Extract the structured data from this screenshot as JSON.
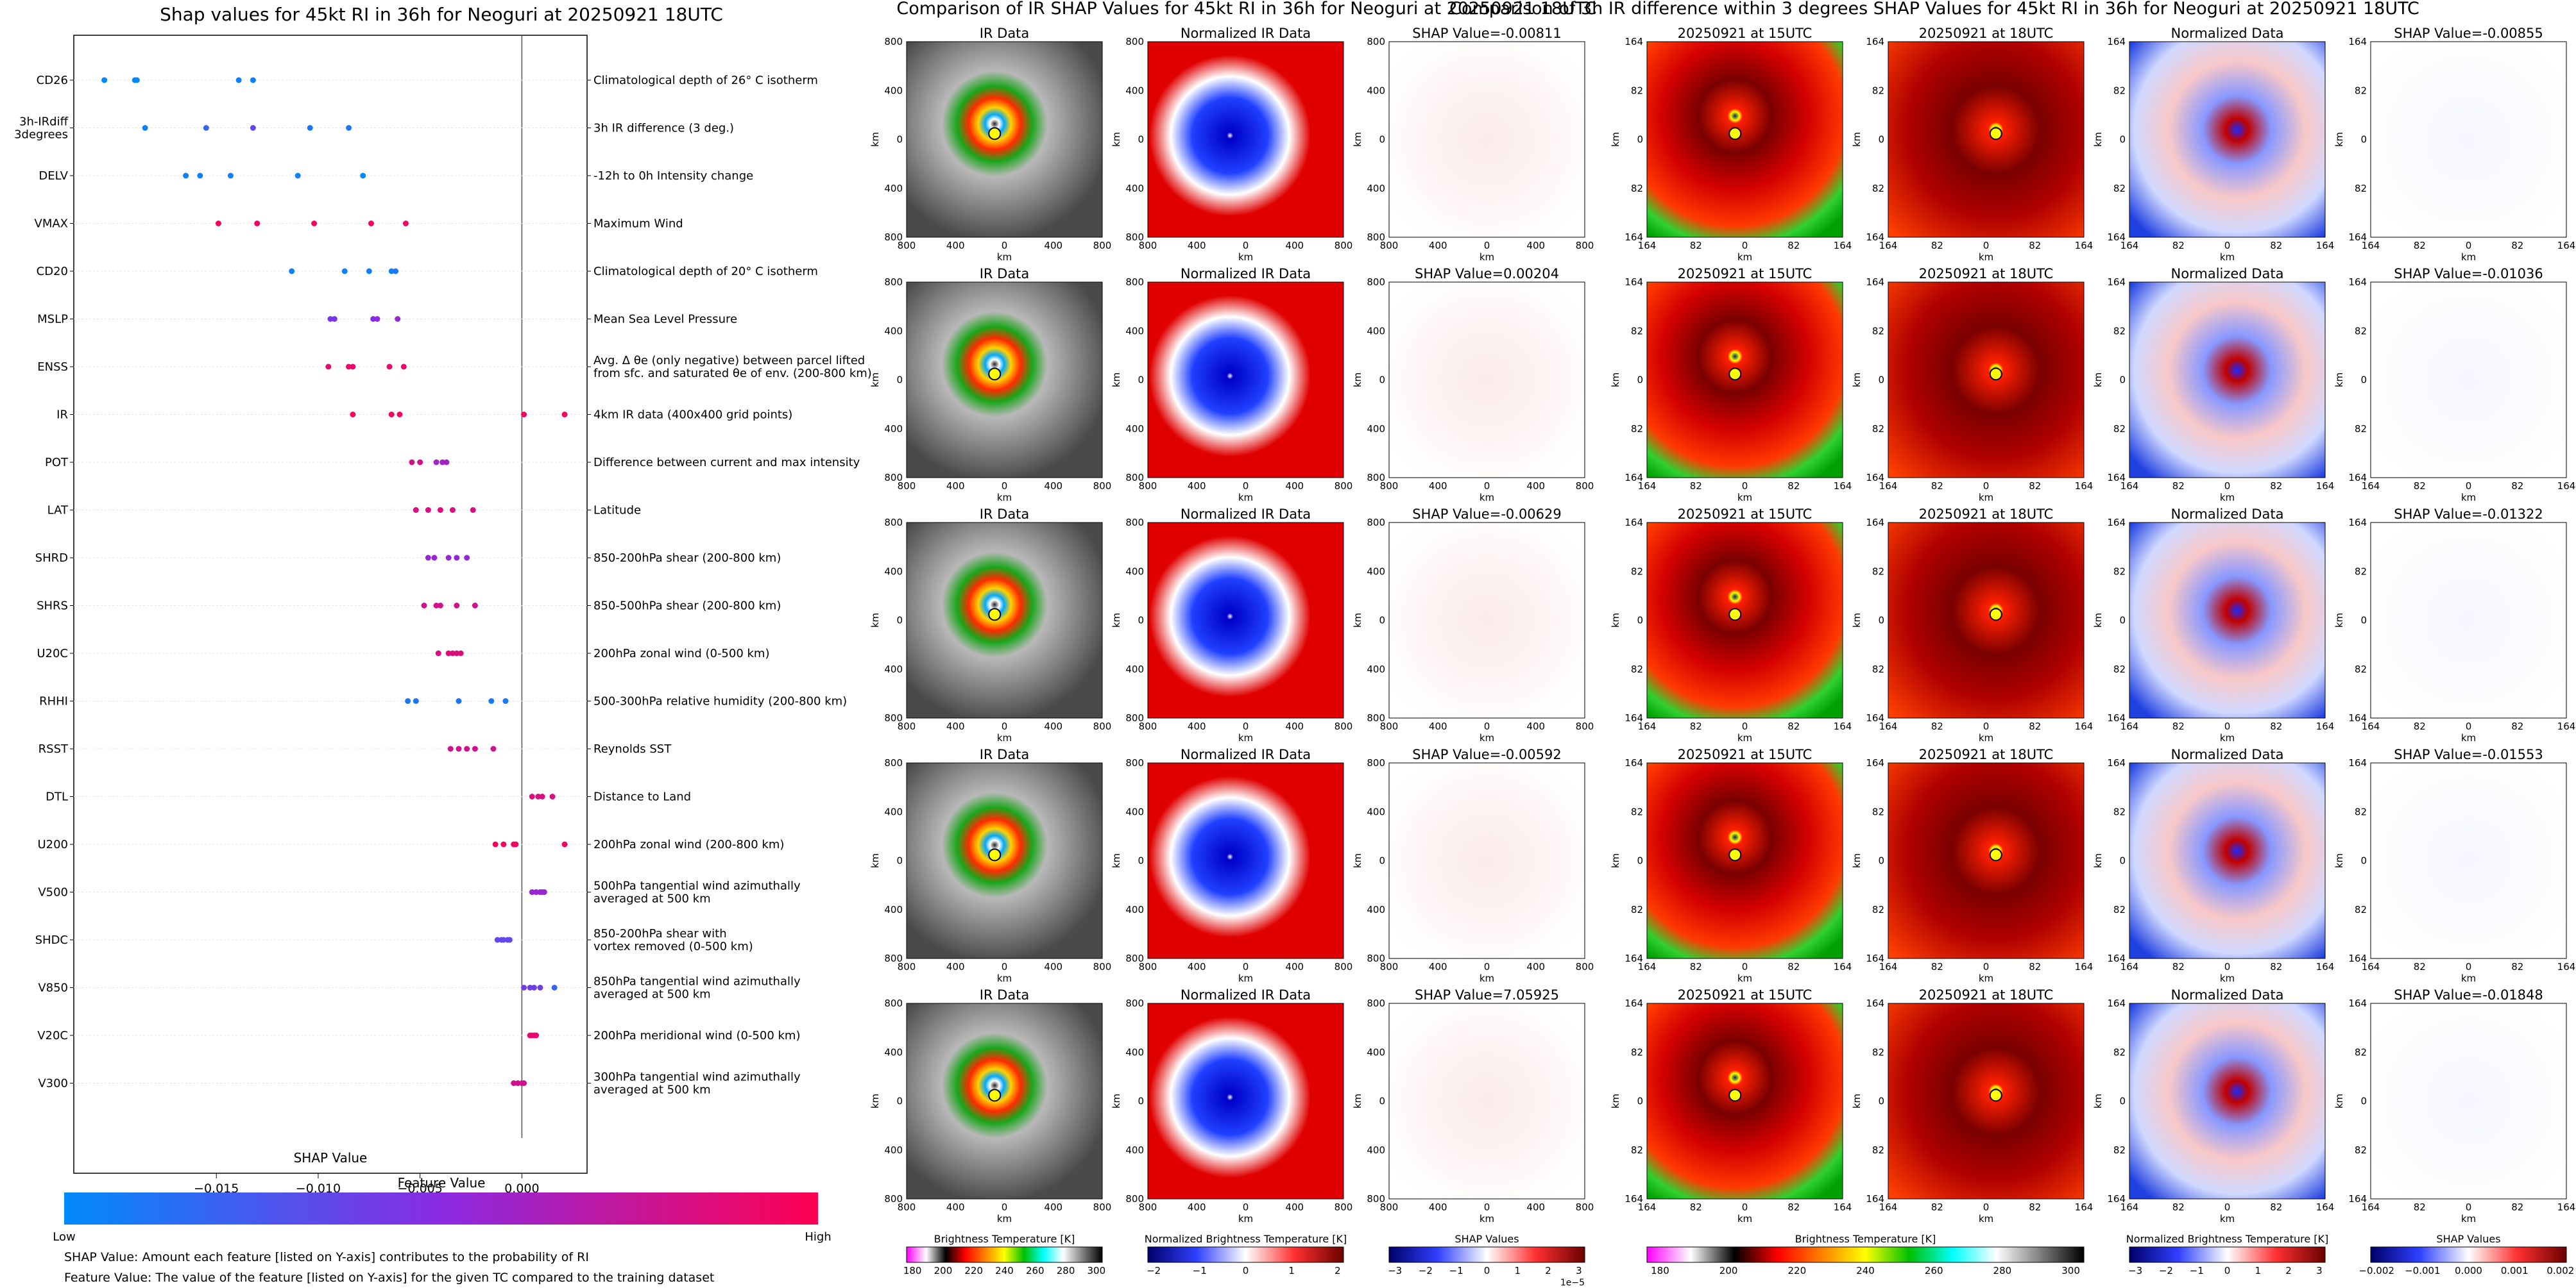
{
  "shap_panel": {
    "title": "Shap values for 45kt RI in 36h for Neoguri at 20250921 18UTC",
    "xlabel": "SHAP Value",
    "colorbar_title": "Feature Value",
    "colorbar_low": "Low",
    "colorbar_high": "High",
    "note_1": "SHAP Value: Amount each feature [listed on Y-axis] contributes to the probability of RI",
    "note_2": "Feature Value: The value of the feature [listed on Y-axis] for the given TC compared to the training dataset"
  },
  "ir_section": {
    "title": "Comparison of IR SHAP Values for 45kt RI in 36h for Neoguri at 20250921 18UTC",
    "col_titles": [
      "IR Data",
      "Normalized IR Data"
    ],
    "shap_titles": [
      "SHAP Value=-0.00811",
      "SHAP Value=0.00204",
      "SHAP Value=-0.00629",
      "SHAP Value=-0.00592",
      "SHAP Value=7.05925"
    ],
    "ticks": [
      "800",
      "400",
      "0",
      "400",
      "800"
    ],
    "axis_label": "km",
    "colorbars": [
      {
        "label": "Brightness Temperature [K]",
        "ticks": [
          "180",
          "200",
          "220",
          "240",
          "260",
          "280",
          "300"
        ]
      },
      {
        "label": "Normalized Brightness Temperature [K]",
        "ticks": [
          "−2",
          "−1",
          "0",
          "1",
          "2"
        ]
      },
      {
        "label": "SHAP Values",
        "ticks": [
          "−3",
          "−2",
          "−1",
          "0",
          "1",
          "2",
          "3"
        ],
        "exponent": "1e−5"
      }
    ]
  },
  "diff_section": {
    "title": "Comparison of 3h IR difference within 3 degrees SHAP Values for 45kt RI in 36h for Neoguri at 20250921 18UTC",
    "col_titles": [
      "20250921 at 15UTC",
      "20250921 at 18UTC",
      "Normalized Data"
    ],
    "shap_titles": [
      "SHAP Value=-0.00855",
      "SHAP Value=-0.01036",
      "SHAP Value=-0.01322",
      "SHAP Value=-0.01553",
      "SHAP Value=-0.01848"
    ],
    "ticks": [
      "164",
      "82",
      "0",
      "82",
      "164"
    ],
    "axis_label": "km",
    "colorbars": [
      {
        "label": "Brightness Temperature [K]",
        "ticks": [
          "180",
          "200",
          "220",
          "240",
          "260",
          "280",
          "300"
        ]
      },
      {
        "label": "Normalized Brightness Temperature [K]",
        "ticks": [
          "−3",
          "−2",
          "−1",
          "0",
          "1",
          "2",
          "3"
        ]
      },
      {
        "label": "SHAP Values",
        "ticks": [
          "−0.002",
          "−0.001",
          "0.000",
          "0.001",
          "0.002"
        ]
      }
    ]
  },
  "chart_data": {
    "type": "scatter",
    "title": "Shap values for 45kt RI in 36h for Neoguri at 20250921 18UTC",
    "xlabel": "SHAP Value",
    "xlim": [
      -0.022,
      0.0032
    ],
    "xticks": [
      -0.015,
      -0.01,
      -0.005,
      0.0
    ],
    "xtick_labels": [
      "−0.015",
      "−0.010",
      "−0.005",
      "0.000"
    ],
    "low_color": "#008afb",
    "high_color": "#ff0052",
    "features": [
      {
        "name": "CD26",
        "desc": "Climatological depth of 26° C isotherm",
        "points": [
          [
            -0.0205,
            0.0
          ],
          [
            -0.019,
            0.02
          ],
          [
            -0.0189,
            0.02
          ],
          [
            -0.0139,
            0.05
          ],
          [
            -0.0132,
            0.05
          ]
        ]
      },
      {
        "name": "3h-IRdiff\n3degrees",
        "desc": "3h IR difference (3 deg.)",
        "points": [
          [
            -0.0185,
            0.05
          ],
          [
            -0.0155,
            0.2
          ],
          [
            -0.0132,
            0.35
          ],
          [
            -0.0104,
            0.1
          ],
          [
            -0.0085,
            0.1
          ]
        ]
      },
      {
        "name": "DELV",
        "desc": "-12h to 0h Intensity change",
        "points": [
          [
            -0.0165,
            0.05
          ],
          [
            -0.0158,
            0.05
          ],
          [
            -0.0143,
            0.05
          ],
          [
            -0.011,
            0.05
          ],
          [
            -0.0078,
            0.0
          ]
        ]
      },
      {
        "name": "VMAX",
        "desc": "Maximum Wind",
        "points": [
          [
            -0.0149,
            0.95
          ],
          [
            -0.013,
            0.95
          ],
          [
            -0.0102,
            0.95
          ],
          [
            -0.0074,
            0.95
          ],
          [
            -0.0057,
            0.95
          ]
        ]
      },
      {
        "name": "CD20",
        "desc": "Climatological depth of 20° C isotherm",
        "points": [
          [
            -0.0113,
            0.05
          ],
          [
            -0.0087,
            0.05
          ],
          [
            -0.0075,
            0.05
          ],
          [
            -0.0064,
            0.05
          ],
          [
            -0.0062,
            0.1
          ]
        ]
      },
      {
        "name": "MSLP",
        "desc": "Mean Sea Level Pressure",
        "points": [
          [
            -0.0094,
            0.45
          ],
          [
            -0.0092,
            0.45
          ],
          [
            -0.0073,
            0.5
          ],
          [
            -0.0071,
            0.5
          ],
          [
            -0.0061,
            0.55
          ]
        ]
      },
      {
        "name": "ENSS",
        "desc": "Avg. Δ θe (only negative) between parcel lifted\nfrom sfc. and saturated θe of env. (200-800 km)",
        "points": [
          [
            -0.0095,
            0.9
          ],
          [
            -0.0085,
            0.9
          ],
          [
            -0.0083,
            0.9
          ],
          [
            -0.0065,
            0.9
          ],
          [
            -0.0058,
            0.9
          ]
        ]
      },
      {
        "name": "IR",
        "desc": "4km IR data (400x400 grid points)",
        "points": [
          [
            -0.0083,
            0.95
          ],
          [
            -0.0064,
            0.95
          ],
          [
            -0.006,
            0.95
          ],
          [
            0.0001,
            0.95
          ],
          [
            0.0021,
            0.95
          ]
        ]
      },
      {
        "name": "POT",
        "desc": "Difference between current and max intensity",
        "points": [
          [
            -0.0054,
            0.8
          ],
          [
            -0.005,
            0.8
          ],
          [
            -0.0042,
            0.6
          ],
          [
            -0.0039,
            0.6
          ],
          [
            -0.0037,
            0.6
          ]
        ]
      },
      {
        "name": "LAT",
        "desc": "Latitude",
        "points": [
          [
            -0.0052,
            0.85
          ],
          [
            -0.0046,
            0.85
          ],
          [
            -0.004,
            0.85
          ],
          [
            -0.0034,
            0.85
          ],
          [
            -0.0024,
            0.85
          ]
        ]
      },
      {
        "name": "SHRD",
        "desc": "850-200hPa shear (200-800 km)",
        "points": [
          [
            -0.0046,
            0.55
          ],
          [
            -0.0043,
            0.55
          ],
          [
            -0.0036,
            0.55
          ],
          [
            -0.0032,
            0.55
          ],
          [
            -0.0027,
            0.55
          ]
        ]
      },
      {
        "name": "SHRS",
        "desc": "850-500hPa shear (200-800 km)",
        "points": [
          [
            -0.0048,
            0.8
          ],
          [
            -0.0042,
            0.8
          ],
          [
            -0.004,
            0.8
          ],
          [
            -0.0032,
            0.8
          ],
          [
            -0.0023,
            0.8
          ]
        ]
      },
      {
        "name": "U20C",
        "desc": "200hPa zonal wind (0-500 km)",
        "points": [
          [
            -0.0041,
            0.85
          ],
          [
            -0.0036,
            0.85
          ],
          [
            -0.0034,
            0.85
          ],
          [
            -0.0032,
            0.85
          ],
          [
            -0.003,
            0.85
          ]
        ]
      },
      {
        "name": "RHHI",
        "desc": "500-300hPa relative humidity (200-800 km)",
        "points": [
          [
            -0.0056,
            0.1
          ],
          [
            -0.0052,
            0.1
          ],
          [
            -0.0031,
            0.1
          ],
          [
            -0.0015,
            0.1
          ],
          [
            -0.0008,
            0.1
          ]
        ]
      },
      {
        "name": "RSST",
        "desc": "Reynolds SST",
        "points": [
          [
            -0.0035,
            0.8
          ],
          [
            -0.0031,
            0.8
          ],
          [
            -0.0027,
            0.8
          ],
          [
            -0.0023,
            0.8
          ],
          [
            -0.0014,
            0.8
          ]
        ]
      },
      {
        "name": "DTL",
        "desc": "Distance to Land",
        "points": [
          [
            0.0005,
            0.85
          ],
          [
            0.0008,
            0.85
          ],
          [
            0.001,
            0.85
          ],
          [
            0.0015,
            0.85
          ]
        ]
      },
      {
        "name": "U200",
        "desc": "200hPa zonal wind (200-800 km)",
        "points": [
          [
            -0.0013,
            0.95
          ],
          [
            -0.0009,
            0.95
          ],
          [
            -0.0004,
            0.95
          ],
          [
            -0.0003,
            0.95
          ],
          [
            0.0021,
            0.95
          ]
        ]
      },
      {
        "name": "V500",
        "desc": "500hPa tangential wind azimuthally\naveraged at 500 km",
        "points": [
          [
            0.0005,
            0.55
          ],
          [
            0.0007,
            0.55
          ],
          [
            0.0009,
            0.55
          ],
          [
            0.001,
            0.55
          ],
          [
            0.0011,
            0.55
          ]
        ]
      },
      {
        "name": "SHDC",
        "desc": "850-200hPa shear with\nvortex removed (0-500 km)",
        "points": [
          [
            -0.0012,
            0.35
          ],
          [
            -0.001,
            0.35
          ],
          [
            -0.0009,
            0.35
          ],
          [
            -0.0007,
            0.35
          ],
          [
            -0.0006,
            0.35
          ]
        ]
      },
      {
        "name": "V850",
        "desc": "850hPa tangential wind azimuthally\naveraged at 500 km",
        "points": [
          [
            0.0001,
            0.4
          ],
          [
            0.0004,
            0.4
          ],
          [
            0.0006,
            0.4
          ],
          [
            0.0009,
            0.4
          ],
          [
            0.0016,
            0.2
          ]
        ]
      },
      {
        "name": "V20C",
        "desc": "200hPa meridional wind (0-500 km)",
        "points": [
          [
            0.0004,
            0.9
          ],
          [
            0.0005,
            0.9
          ],
          [
            0.0006,
            0.9
          ],
          [
            0.0007,
            0.9
          ]
        ]
      },
      {
        "name": "V300",
        "desc": "300hPa tangential wind azimuthally\naveraged at 500 km",
        "points": [
          [
            -0.0004,
            0.8
          ],
          [
            -0.0002,
            0.8
          ],
          [
            0.0,
            0.8
          ],
          [
            0.0001,
            0.8
          ]
        ]
      }
    ]
  }
}
